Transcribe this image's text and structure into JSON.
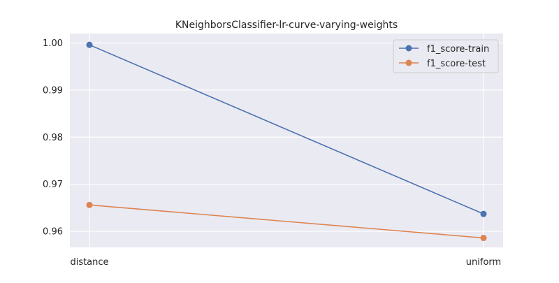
{
  "chart_data": {
    "type": "line",
    "title": "KNeighborsClassifier-lr-curve-varying-weights",
    "xlabel": "",
    "ylabel": "",
    "categories": [
      "distance",
      "uniform"
    ],
    "series": [
      {
        "name": "f1_score-train",
        "color": "#4c72b0",
        "values": [
          0.9996,
          0.9637
        ]
      },
      {
        "name": "f1_score-test",
        "color": "#dd8452",
        "values": [
          0.9656,
          0.9586
        ]
      }
    ],
    "ylim": [
      0.9566,
      1.002
    ],
    "yticks": [
      "0.96",
      "0.97",
      "0.98",
      "0.99",
      "1.00"
    ],
    "grid": true,
    "legend": "top-right",
    "background": "#eaeaf2"
  }
}
